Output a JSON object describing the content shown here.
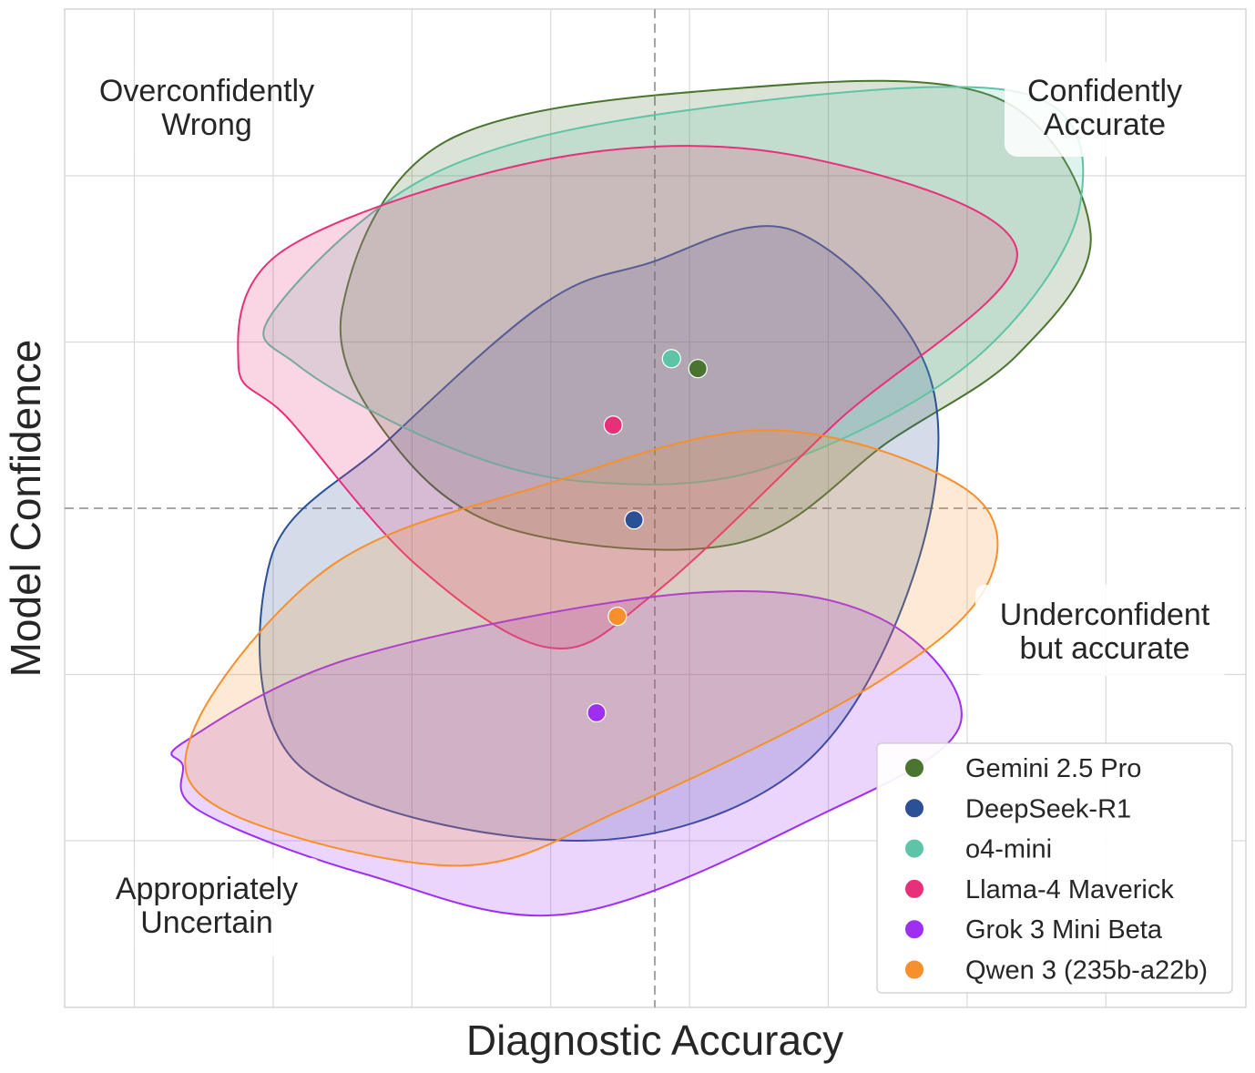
{
  "chart_data": {
    "type": "scatter",
    "xlabel": "Diagnostic Accuracy",
    "ylabel": "Model Confidence",
    "grid": true,
    "legend_position": "bottom-right",
    "reference_lines": {
      "x": 0,
      "y": 0,
      "style": "dashed"
    },
    "quadrant_labels": {
      "top_left": [
        "Overconfidently",
        "Wrong"
      ],
      "top_right": [
        "Confidently",
        "Accurate"
      ],
      "bottom_right": [
        "Underconfident",
        "but accurate"
      ],
      "bottom_left": [
        "Appropriately",
        "Uncertain"
      ]
    },
    "series": [
      {
        "name": "Gemini 2.5 Pro",
        "color": "#4a7530",
        "point": [
          0.31,
          0.84
        ],
        "region": [
          [
            -2.25,
            1.21
          ],
          [
            -1.5,
            2.21
          ],
          [
            0.65,
            2.53
          ],
          [
            2.46,
            2.47
          ],
          [
            3.14,
            1.65
          ],
          [
            2.62,
            0.93
          ],
          [
            1.7,
            0.41
          ],
          [
            0.6,
            -0.21
          ],
          [
            -1.06,
            -0.12
          ],
          [
            -1.93,
            0.44
          ]
        ]
      },
      {
        "name": "DeepSeek-R1",
        "color": "#2a5096",
        "point": [
          -0.15,
          -0.07
        ],
        "region": [
          [
            -0.06,
            1.47
          ],
          [
            1.0,
            1.67
          ],
          [
            1.97,
            0.82
          ],
          [
            1.87,
            -0.39
          ],
          [
            1.03,
            -1.57
          ],
          [
            -0.57,
            -2.0
          ],
          [
            -2.56,
            -1.55
          ],
          [
            -2.77,
            -0.31
          ],
          [
            -1.92,
            0.41
          ],
          [
            -0.8,
            1.23
          ]
        ]
      },
      {
        "name": "o4-mini",
        "color": "#5ec4a8",
        "point": [
          0.12,
          0.9
        ],
        "region": [
          [
            -2.75,
            1.18
          ],
          [
            -1.6,
            2.01
          ],
          [
            0.2,
            2.39
          ],
          [
            2.64,
            2.5
          ],
          [
            3.06,
            1.81
          ],
          [
            2.28,
            0.88
          ],
          [
            0.8,
            0.24
          ],
          [
            -0.5,
            0.16
          ],
          [
            -1.55,
            0.39
          ],
          [
            -2.57,
            0.86
          ]
        ]
      },
      {
        "name": "Llama-4 Maverick",
        "color": "#e8307a",
        "point": [
          -0.3,
          0.5
        ],
        "region": [
          [
            -2.66,
            1.56
          ],
          [
            -0.7,
            2.11
          ],
          [
            1.09,
            2.11
          ],
          [
            2.61,
            1.54
          ],
          [
            1.3,
            0.51
          ],
          [
            0.0,
            -0.51
          ],
          [
            -0.75,
            -0.84
          ],
          [
            -1.72,
            -0.34
          ],
          [
            -2.63,
            0.53
          ],
          [
            -3.0,
            0.86
          ]
        ]
      },
      {
        "name": "Grok 3 Mini Beta",
        "color": "#9e2ef0",
        "point": [
          -0.42,
          -1.23
        ],
        "region": [
          [
            -3.38,
            -1.4
          ],
          [
            -2.14,
            -0.89
          ],
          [
            0.26,
            -0.51
          ],
          [
            1.62,
            -0.66
          ],
          [
            2.2,
            -1.3
          ],
          [
            1.18,
            -1.85
          ],
          [
            -0.62,
            -2.44
          ],
          [
            -2.09,
            -2.2
          ],
          [
            -3.28,
            -1.82
          ],
          [
            -3.4,
            -1.55
          ]
        ]
      },
      {
        "name": "Qwen 3 (235b-a22b)",
        "color": "#f7902a",
        "point": [
          -0.27,
          -0.65
        ],
        "region": [
          [
            -3.3,
            -1.29
          ],
          [
            -2.32,
            -0.34
          ],
          [
            -0.84,
            0.13
          ],
          [
            0.82,
            0.47
          ],
          [
            2.25,
            0.11
          ],
          [
            2.4,
            -0.45
          ],
          [
            1.6,
            -1.05
          ],
          [
            -0.2,
            -1.8
          ],
          [
            -1.43,
            -2.15
          ],
          [
            -3.12,
            -1.81
          ]
        ]
      }
    ]
  }
}
